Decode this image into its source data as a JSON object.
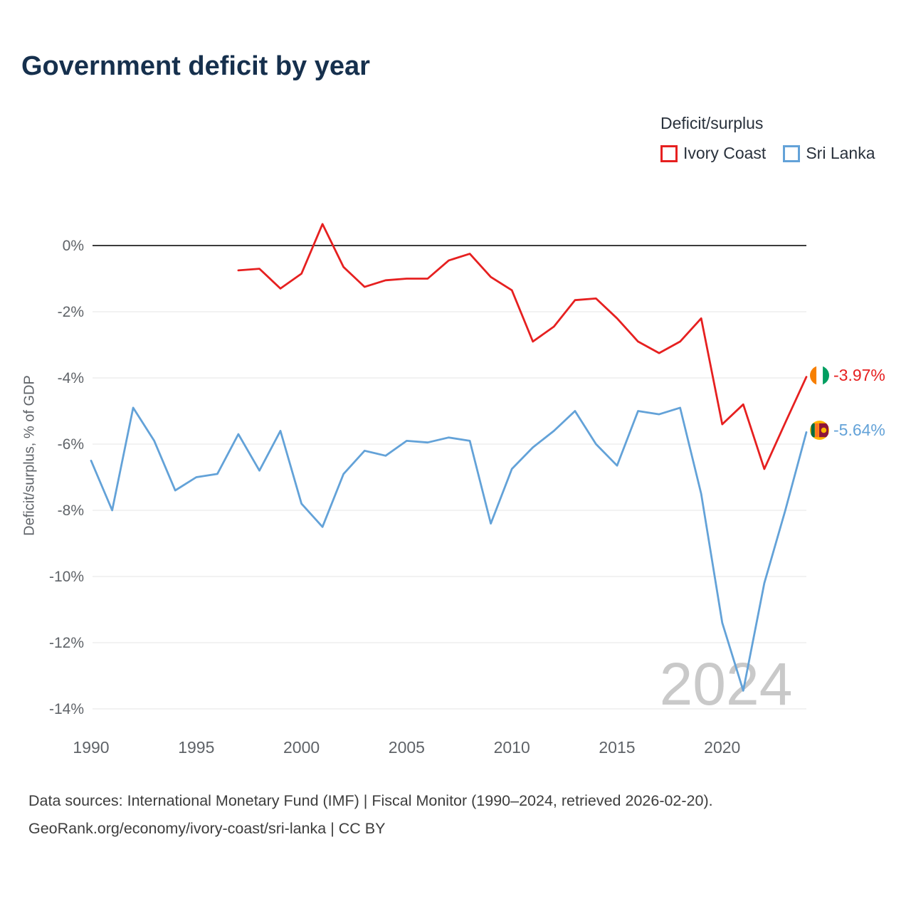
{
  "title": "Government deficit by year",
  "legend": {
    "title": "Deficit/surplus",
    "items": [
      {
        "label": "Ivory Coast",
        "color": "#e62020"
      },
      {
        "label": "Sri Lanka",
        "color": "#63a2d8"
      }
    ]
  },
  "watermark": "2024",
  "footer": {
    "line1": "Data sources: International Monetary Fund (IMF) | Fiscal Monitor (1990–2024, retrieved 2026-02-20).",
    "line2": "GeoRank.org/economy/ivory-coast/sri-lanka | CC BY"
  },
  "chart_data": {
    "type": "line",
    "title": "Government deficit by year",
    "xlabel": "",
    "ylabel": "Deficit/surplus, % of GDP",
    "xlim": [
      1990,
      2024
    ],
    "ylim": [
      -14,
      1
    ],
    "grid": true,
    "legend_position": "top-right",
    "yticks": [
      0,
      -2,
      -4,
      -6,
      -8,
      -10,
      -12,
      -14
    ],
    "ytick_labels": [
      "0%",
      "-2%",
      "-4%",
      "-6%",
      "-8%",
      "-10%",
      "-12%",
      "-14%"
    ],
    "xticks": [
      1990,
      1995,
      2000,
      2005,
      2010,
      2015,
      2020
    ],
    "series": [
      {
        "name": "Ivory Coast",
        "color": "#e62020",
        "end_label": "-3.97%",
        "x": [
          1997,
          1998,
          1999,
          2000,
          2001,
          2002,
          2003,
          2004,
          2005,
          2006,
          2007,
          2008,
          2009,
          2010,
          2011,
          2012,
          2013,
          2014,
          2015,
          2016,
          2017,
          2018,
          2019,
          2020,
          2021,
          2022,
          2023,
          2024
        ],
        "values": [
          -0.75,
          -0.7,
          -1.3,
          -0.85,
          0.65,
          -0.65,
          -1.25,
          -1.05,
          -1.0,
          -1.0,
          -0.45,
          -0.25,
          -0.95,
          -1.35,
          -2.9,
          -2.45,
          -1.65,
          -1.6,
          -2.2,
          -2.9,
          -3.25,
          -2.9,
          -2.2,
          -5.4,
          -4.8,
          -6.75,
          -5.35,
          -3.97
        ]
      },
      {
        "name": "Sri Lanka",
        "color": "#63a2d8",
        "end_label": "-5.64%",
        "x": [
          1990,
          1991,
          1992,
          1993,
          1994,
          1995,
          1996,
          1997,
          1998,
          1999,
          2000,
          2001,
          2002,
          2003,
          2004,
          2005,
          2006,
          2007,
          2008,
          2009,
          2010,
          2011,
          2012,
          2013,
          2014,
          2015,
          2016,
          2017,
          2018,
          2019,
          2020,
          2021,
          2022,
          2023,
          2024
        ],
        "values": [
          -6.5,
          -8.0,
          -4.9,
          -5.9,
          -7.4,
          -7.0,
          -6.9,
          -5.7,
          -6.8,
          -5.6,
          -7.8,
          -8.5,
          -6.9,
          -6.2,
          -6.35,
          -5.9,
          -5.95,
          -5.8,
          -5.9,
          -8.4,
          -6.75,
          -6.1,
          -5.6,
          -5.0,
          -6.0,
          -6.65,
          -5.0,
          -5.1,
          -4.9,
          -7.5,
          -11.4,
          -13.45,
          -10.2,
          -8.0,
          -5.64
        ]
      }
    ]
  }
}
